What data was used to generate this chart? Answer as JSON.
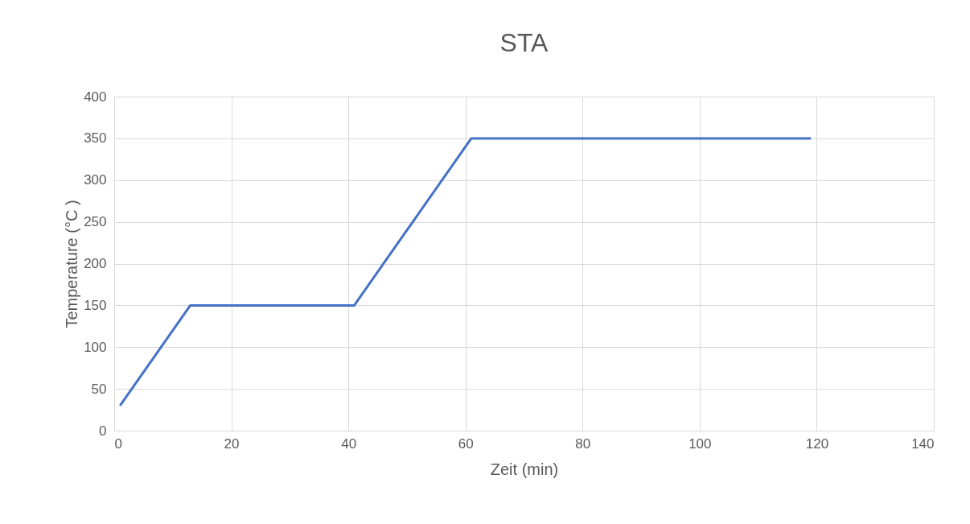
{
  "chart_data": {
    "type": "line",
    "title": "STA",
    "xlabel": "Zeit (min)",
    "ylabel": "Temperature (°C )",
    "x": [
      1,
      13,
      41,
      61,
      119
    ],
    "series": [
      {
        "color": "#4472c4",
        "values": [
          30,
          150,
          150,
          350,
          350
        ]
      }
    ],
    "xlim": [
      0,
      140
    ],
    "xticks": [
      0,
      20,
      40,
      60,
      80,
      100,
      120,
      140
    ],
    "ylim": [
      0,
      400
    ],
    "yticks": [
      0,
      50,
      100,
      150,
      200,
      250,
      300,
      350,
      400
    ],
    "grid": true,
    "marker": "none",
    "line_style": "solid"
  }
}
